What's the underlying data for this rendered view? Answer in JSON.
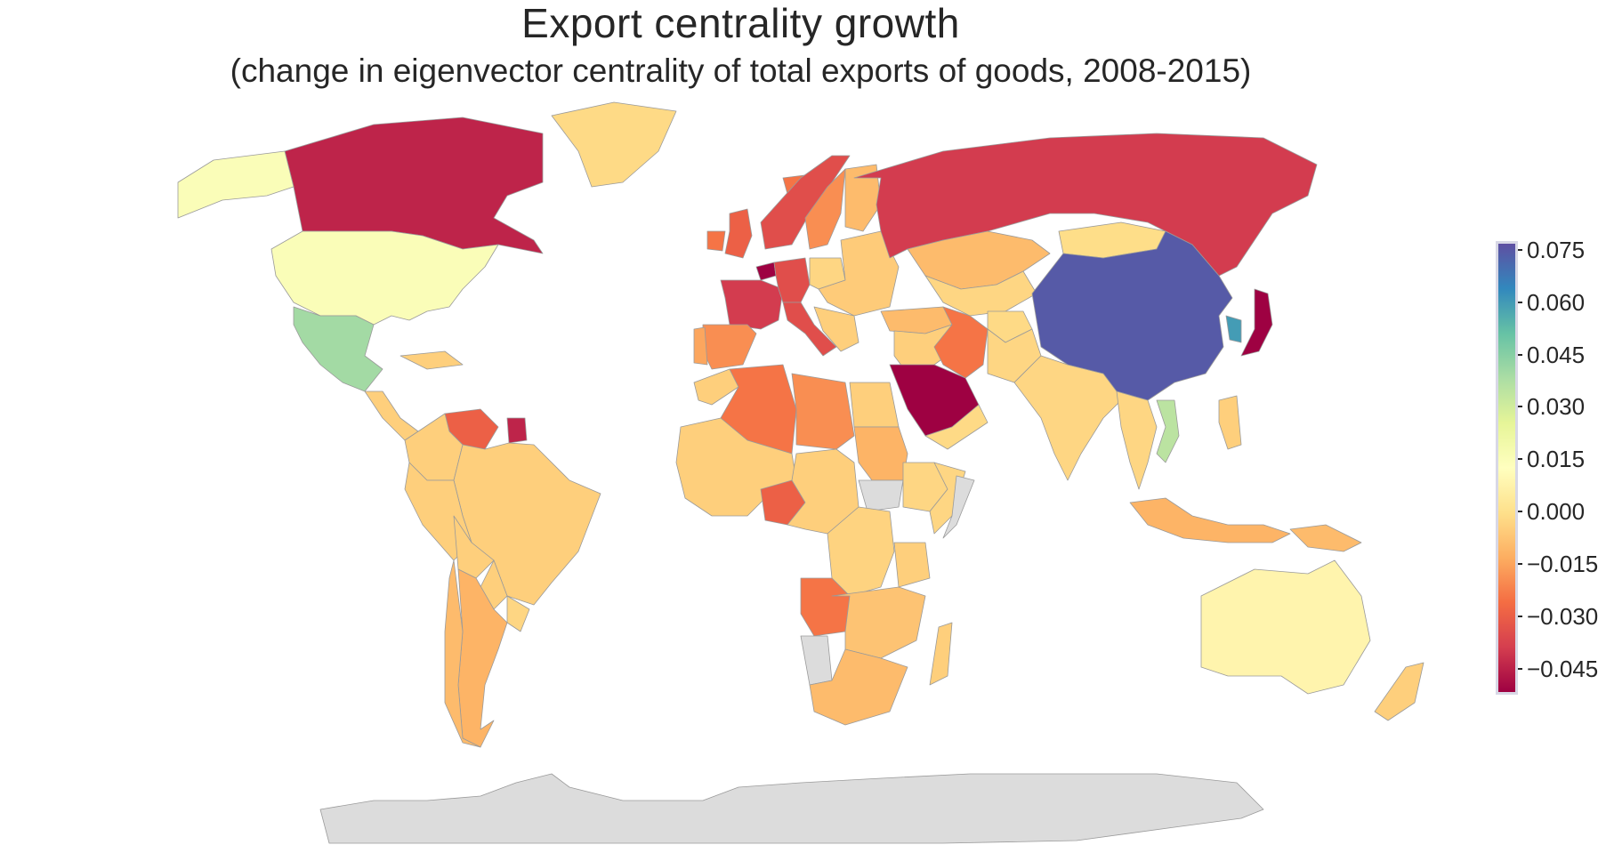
{
  "title": "Export centrality growth",
  "subtitle": "(change in eigenvector centrality of total exports of goods, 2008-2015)",
  "colorbar": {
    "min": -0.0525,
    "max": 0.0775,
    "ticks": [
      "0.075",
      "0.060",
      "0.045",
      "0.030",
      "0.015",
      "0.000",
      "−0.015",
      "−0.030",
      "−0.045"
    ],
    "tick_values": [
      0.075,
      0.06,
      0.045,
      0.03,
      0.015,
      0.0,
      -0.015,
      -0.03,
      -0.045
    ],
    "palette": [
      "#9e0142",
      "#d53e4f",
      "#f46d43",
      "#fdae61",
      "#fee08b",
      "#ffffbf",
      "#e6f598",
      "#abdda4",
      "#66c2a5",
      "#3288bd",
      "#5e4fa2"
    ],
    "no_data_color": "#dcdcdc"
  },
  "chart_data": {
    "type": "choropleth",
    "colorscale": "Spectral",
    "values": {
      "Canada": -0.045,
      "Greenland": -0.002,
      "Alaska (USA)": 0.015,
      "United States": 0.015,
      "Mexico": 0.04,
      "Central America": -0.005,
      "Caribbean": -0.005,
      "Venezuela": -0.03,
      "Colombia": -0.005,
      "Brazil": -0.005,
      "Peru": -0.005,
      "Bolivia": -0.005,
      "Argentina": -0.012,
      "Chile": -0.01,
      "Paraguay": -0.005,
      "Uruguay": -0.003,
      "Suriname": -0.045,
      "Iceland": -0.025,
      "Norway": -0.035,
      "Sweden": -0.02,
      "Finland": -0.01,
      "United Kingdom": -0.03,
      "Ireland": -0.025,
      "France": -0.04,
      "Spain": -0.02,
      "Portugal": -0.015,
      "Germany": -0.035,
      "Netherlands": -0.055,
      "Italy": -0.035,
      "Poland": -0.003,
      "Eastern Europe": -0.006,
      "Balkans": -0.005,
      "Russia": -0.04,
      "Kazakhstan": -0.01,
      "Central Asia": -0.003,
      "Turkey": -0.01,
      "Iran": -0.025,
      "Saudi Arabia": -0.055,
      "Yemen": -0.002,
      "Middle East": -0.005,
      "India": -0.003,
      "Pakistan": -0.003,
      "Afghanistan": -0.002,
      "China": 0.075,
      "Mongolia": -0.001,
      "Korea": 0.06,
      "Japan": -0.055,
      "Vietnam": 0.035,
      "Southeast Asia": -0.003,
      "Indonesia": -0.012,
      "Papua New Guinea": -0.01,
      "Philippines": -0.005,
      "Australia": 0.008,
      "New Zealand": -0.005,
      "Algeria": -0.025,
      "Libya": -0.02,
      "Egypt": -0.005,
      "Morocco": -0.005,
      "West Africa": -0.005,
      "Nigeria": -0.03,
      "Central Africa": -0.005,
      "Sudan": -0.012,
      "Ethiopia": -0.003,
      "Horn of Africa": -0.003,
      "Angola": -0.025,
      "DR Congo": -0.004,
      "Southern Africa": -0.008,
      "Tanzania": -0.005,
      "Madagascar": -0.005,
      "South Africa": -0.01
    },
    "no_data": [
      "Antarctica",
      "South Sudan",
      "Namibia",
      "Somalia",
      "Western Sahara",
      "Kosovo"
    ]
  }
}
